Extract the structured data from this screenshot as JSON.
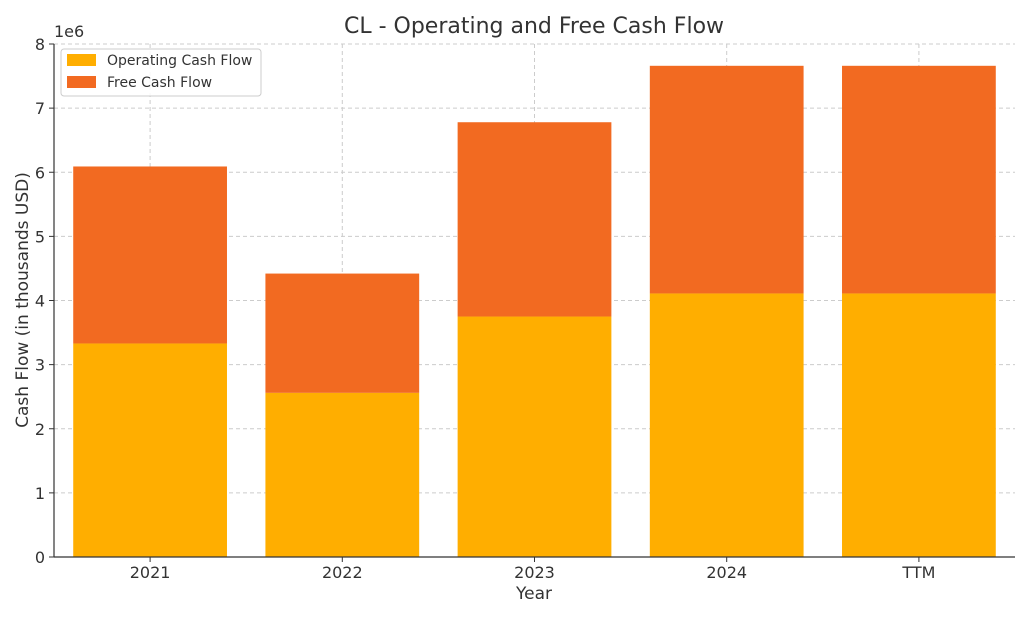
{
  "chart_data": {
    "type": "bar",
    "stacked": true,
    "title": "CL - Operating and Free Cash Flow",
    "xlabel": "Year",
    "ylabel": "Cash Flow (in thousands USD)",
    "y_offset_text": "1e6",
    "ylim": [
      0,
      8000000
    ],
    "yticks": [
      0,
      1,
      2,
      3,
      4,
      5,
      6,
      7,
      8
    ],
    "categories": [
      "2021",
      "2022",
      "2023",
      "2024",
      "TTM"
    ],
    "series": [
      {
        "name": "Operating Cash Flow",
        "color": "#FFAE00",
        "values": [
          3330000,
          2560000,
          3750000,
          4110000,
          4110000
        ]
      },
      {
        "name": "Free Cash Flow",
        "color": "#F26A21",
        "values": [
          2760000,
          1860000,
          3030000,
          3550000,
          3550000
        ]
      }
    ],
    "grid": true,
    "legend_position": "top-left"
  }
}
